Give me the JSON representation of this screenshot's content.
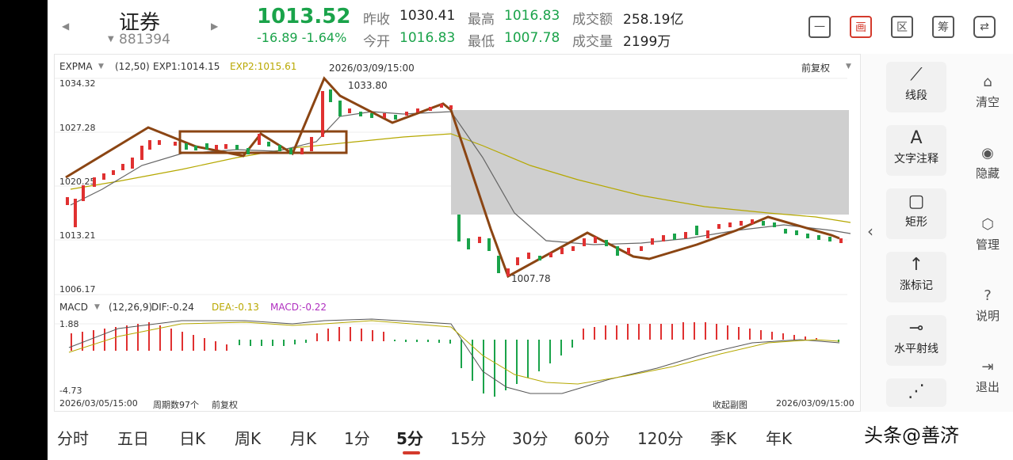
{
  "header": {
    "name": "证券",
    "code": "881394",
    "price": "1013.52",
    "change": "-16.89  -1.64%",
    "stats": [
      {
        "label": "昨收",
        "value": "1030.41",
        "tone": "dark"
      },
      {
        "label": "最高",
        "value": "1016.83",
        "tone": "green"
      },
      {
        "label": "成交额",
        "value": "258.19亿",
        "tone": "dark"
      },
      {
        "label": "今开",
        "value": "1016.83",
        "tone": "green"
      },
      {
        "label": "最低",
        "value": "1007.78",
        "tone": "green"
      },
      {
        "label": "成交量",
        "value": "2199万",
        "tone": "dark"
      }
    ],
    "tools": [
      "一",
      "画",
      "区",
      "筹",
      "⇄"
    ]
  },
  "main_chart": {
    "indicator": "EXPMA",
    "params": "(12,50)",
    "exp1": "EXP1:1014.15",
    "exp2": "EXP2:1015.61",
    "datetime": "2026/03/09/15:00",
    "adjust": "前复权",
    "y_labels": [
      "1034.32",
      "1027.28",
      "1020.25",
      "1013.21",
      "1006.17"
    ],
    "high_label": "1033.80",
    "low_label": "1007.78"
  },
  "macd_chart": {
    "indicator": "MACD",
    "params": "(12,26,9)",
    "dif": "DIF:-0.24",
    "dea": "DEA:-0.13",
    "macd": "MACD:-0.22",
    "y_top": "1.88",
    "y_bottom": "-4.73"
  },
  "footer": {
    "start": "2026/03/05/15:00",
    "count": "周期数97个",
    "adjust": "前复权",
    "collapse": "收起副图",
    "end": "2026/03/09/15:00"
  },
  "side_tools": [
    {
      "icon": "⟋",
      "label": "线段"
    },
    {
      "icon": "A",
      "label": "文字注释"
    },
    {
      "icon": "▢",
      "label": "矩形"
    },
    {
      "icon": "↑",
      "label": "涨标记"
    },
    {
      "icon": "⊸",
      "label": "水平射线"
    },
    {
      "icon": "⋰",
      "label": ""
    }
  ],
  "right_tools": [
    {
      "icon": "⌂",
      "label": "清空"
    },
    {
      "icon": "◉",
      "label": "隐藏"
    },
    {
      "icon": "⬡",
      "label": "管理"
    },
    {
      "icon": "?",
      "label": "说明"
    },
    {
      "icon": "⇥",
      "label": "退出"
    }
  ],
  "periods": [
    "分时",
    "五日",
    "日K",
    "周K",
    "月K",
    "1分",
    "5分",
    "15分",
    "30分",
    "60分",
    "120分",
    "季K",
    "年K"
  ],
  "active_period": "5分",
  "watermark": "头条@善济",
  "colors": {
    "up": "#e03131",
    "down": "#1aa34a",
    "accent": "#d43a2c",
    "drawing": "#8b4513"
  }
}
